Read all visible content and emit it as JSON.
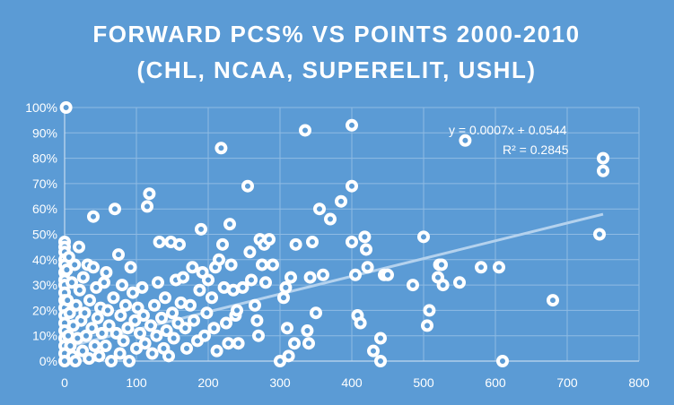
{
  "chart_data": {
    "type": "scatter",
    "title_lines": [
      "FORWARD PCS% VS POINTS 2000-2010",
      "(CHL, NCAA, SUPERELIT, USHL)"
    ],
    "xlim": [
      0,
      800
    ],
    "ylim": [
      0,
      1
    ],
    "x_ticks": [
      0,
      100,
      200,
      300,
      400,
      500,
      600,
      700,
      800
    ],
    "y_ticks": [
      0,
      0.1,
      0.2,
      0.3,
      0.4,
      0.5,
      0.6,
      0.7,
      0.8,
      0.9,
      1.0
    ],
    "x_tick_labels": [
      "0",
      "100",
      "200",
      "300",
      "400",
      "500",
      "600",
      "700",
      "800"
    ],
    "y_tick_labels": [
      "0%",
      "10%",
      "20%",
      "30%",
      "40%",
      "50%",
      "60%",
      "70%",
      "80%",
      "90%",
      "100%"
    ],
    "grid": true,
    "trendline": {
      "slope": 0.0007,
      "intercept": 0.0544,
      "x_range": [
        0,
        750
      ],
      "equation": "y = 0.0007x + 0.0544",
      "r_squared": "R² = 0.2845"
    },
    "points": [
      [
        2,
        1.0
      ],
      [
        0,
        0.47
      ],
      [
        0,
        0.45
      ],
      [
        0,
        0.43
      ],
      [
        0,
        0.4
      ],
      [
        0,
        0.38
      ],
      [
        0,
        0.35
      ],
      [
        0,
        0.32
      ],
      [
        0,
        0.3
      ],
      [
        0,
        0.27
      ],
      [
        0,
        0.24
      ],
      [
        0,
        0.21
      ],
      [
        0,
        0.18
      ],
      [
        0,
        0.15
      ],
      [
        0,
        0.12
      ],
      [
        0,
        0.09
      ],
      [
        0,
        0.06
      ],
      [
        0,
        0.03
      ],
      [
        0,
        0.0
      ],
      [
        3,
        0.36
      ],
      [
        4,
        0.24
      ],
      [
        5,
        0.1
      ],
      [
        6,
        0.41
      ],
      [
        7,
        0.19
      ],
      [
        8,
        0.06
      ],
      [
        10,
        0.31
      ],
      [
        11,
        0.02
      ],
      [
        12,
        0.14
      ],
      [
        14,
        0.38
      ],
      [
        15,
        0.0
      ],
      [
        16,
        0.22
      ],
      [
        18,
        0.09
      ],
      [
        20,
        0.45
      ],
      [
        21,
        0.28
      ],
      [
        23,
        0.16
      ],
      [
        25,
        0.04
      ],
      [
        26,
        0.33
      ],
      [
        28,
        0.19
      ],
      [
        30,
        0.1
      ],
      [
        32,
        0.38
      ],
      [
        34,
        0.01
      ],
      [
        35,
        0.24
      ],
      [
        38,
        0.13
      ],
      [
        40,
        0.57
      ],
      [
        40,
        0.37
      ],
      [
        42,
        0.06
      ],
      [
        44,
        0.29
      ],
      [
        46,
        0.17
      ],
      [
        48,
        0.02
      ],
      [
        50,
        0.21
      ],
      [
        52,
        0.11
      ],
      [
        55,
        0.31
      ],
      [
        57,
        0.06
      ],
      [
        58,
        0.35
      ],
      [
        60,
        0.2
      ],
      [
        62,
        0.14
      ],
      [
        65,
        0.0
      ],
      [
        68,
        0.25
      ],
      [
        70,
        0.6
      ],
      [
        72,
        0.11
      ],
      [
        75,
        0.42
      ],
      [
        77,
        0.03
      ],
      [
        78,
        0.18
      ],
      [
        80,
        0.3
      ],
      [
        82,
        0.08
      ],
      [
        85,
        0.22
      ],
      [
        88,
        0.13
      ],
      [
        90,
        0.0
      ],
      [
        92,
        0.37
      ],
      [
        95,
        0.27
      ],
      [
        98,
        0.16
      ],
      [
        100,
        0.05
      ],
      [
        102,
        0.21
      ],
      [
        105,
        0.11
      ],
      [
        108,
        0.29
      ],
      [
        110,
        0.18
      ],
      [
        112,
        0.07
      ],
      [
        115,
        0.61
      ],
      [
        118,
        0.66
      ],
      [
        120,
        0.14
      ],
      [
        122,
        0.03
      ],
      [
        125,
        0.22
      ],
      [
        128,
        0.1
      ],
      [
        130,
        0.31
      ],
      [
        132,
        0.47
      ],
      [
        135,
        0.17
      ],
      [
        138,
        0.05
      ],
      [
        140,
        0.25
      ],
      [
        142,
        0.12
      ],
      [
        145,
        0.02
      ],
      [
        148,
        0.47
      ],
      [
        150,
        0.19
      ],
      [
        152,
        0.09
      ],
      [
        155,
        0.32
      ],
      [
        158,
        0.15
      ],
      [
        160,
        0.46
      ],
      [
        162,
        0.23
      ],
      [
        165,
        0.33
      ],
      [
        168,
        0.13
      ],
      [
        170,
        0.05
      ],
      [
        175,
        0.22
      ],
      [
        178,
        0.37
      ],
      [
        180,
        0.16
      ],
      [
        185,
        0.08
      ],
      [
        188,
        0.28
      ],
      [
        190,
        0.52
      ],
      [
        192,
        0.35
      ],
      [
        195,
        0.1
      ],
      [
        198,
        0.19
      ],
      [
        200,
        0.32
      ],
      [
        205,
        0.25
      ],
      [
        208,
        0.13
      ],
      [
        210,
        0.37
      ],
      [
        212,
        0.04
      ],
      [
        215,
        0.4
      ],
      [
        218,
        0.84
      ],
      [
        220,
        0.46
      ],
      [
        222,
        0.29
      ],
      [
        225,
        0.15
      ],
      [
        228,
        0.07
      ],
      [
        230,
        0.54
      ],
      [
        232,
        0.38
      ],
      [
        235,
        0.28
      ],
      [
        238,
        0.18
      ],
      [
        240,
        0.2
      ],
      [
        242,
        0.07
      ],
      [
        248,
        0.29
      ],
      [
        255,
        0.69
      ],
      [
        258,
        0.43
      ],
      [
        260,
        0.32
      ],
      [
        265,
        0.22
      ],
      [
        268,
        0.16
      ],
      [
        270,
        0.1
      ],
      [
        272,
        0.48
      ],
      [
        275,
        0.38
      ],
      [
        278,
        0.46
      ],
      [
        280,
        0.31
      ],
      [
        285,
        0.48
      ],
      [
        290,
        0.38
      ],
      [
        300,
        0.0
      ],
      [
        305,
        0.25
      ],
      [
        308,
        0.29
      ],
      [
        310,
        0.13
      ],
      [
        312,
        0.02
      ],
      [
        315,
        0.33
      ],
      [
        320,
        0.07
      ],
      [
        322,
        0.46
      ],
      [
        335,
        0.91
      ],
      [
        338,
        0.12
      ],
      [
        340,
        0.07
      ],
      [
        342,
        0.33
      ],
      [
        345,
        0.47
      ],
      [
        350,
        0.19
      ],
      [
        355,
        0.6
      ],
      [
        360,
        0.34
      ],
      [
        370,
        0.56
      ],
      [
        385,
        0.63
      ],
      [
        400,
        0.93
      ],
      [
        400,
        0.69
      ],
      [
        400,
        0.47
      ],
      [
        405,
        0.34
      ],
      [
        408,
        0.18
      ],
      [
        412,
        0.15
      ],
      [
        418,
        0.49
      ],
      [
        420,
        0.44
      ],
      [
        422,
        0.37
      ],
      [
        430,
        0.04
      ],
      [
        440,
        0.0
      ],
      [
        440,
        0.09
      ],
      [
        445,
        0.34
      ],
      [
        450,
        0.34
      ],
      [
        485,
        0.3
      ],
      [
        500,
        0.49
      ],
      [
        505,
        0.14
      ],
      [
        508,
        0.2
      ],
      [
        520,
        0.33
      ],
      [
        522,
        0.38
      ],
      [
        525,
        0.38
      ],
      [
        527,
        0.3
      ],
      [
        550,
        0.31
      ],
      [
        558,
        0.87
      ],
      [
        580,
        0.37
      ],
      [
        605,
        0.37
      ],
      [
        610,
        0.0
      ],
      [
        680,
        0.24
      ],
      [
        745,
        0.5
      ],
      [
        750,
        0.8
      ],
      [
        750,
        0.75
      ]
    ]
  }
}
